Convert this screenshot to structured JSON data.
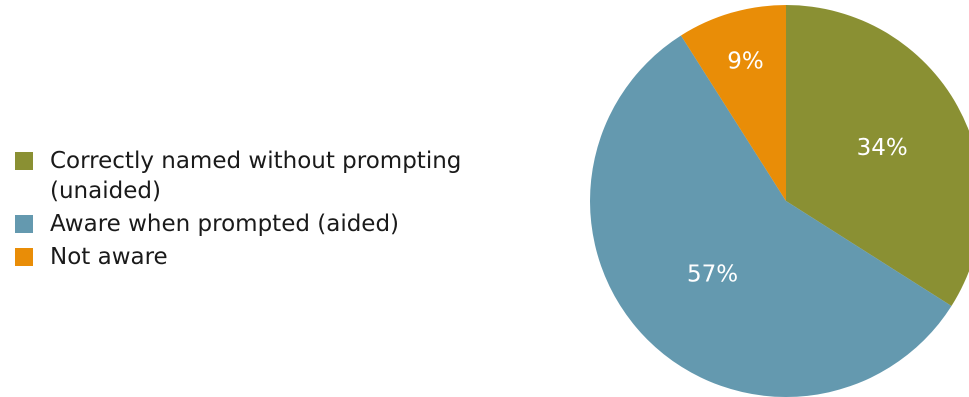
{
  "chart_data": {
    "type": "pie",
    "title": "",
    "legend_position": "left",
    "start_angle_deg": 0,
    "direction": "clockwise",
    "slices": [
      {
        "label": "Correctly named without prompting (unaided)",
        "value": 34,
        "value_label": "34%",
        "color": "#8a9033"
      },
      {
        "label": "Aware when prompted (aided)",
        "value": 57,
        "value_label": "57%",
        "color": "#6499af"
      },
      {
        "label": "Not aware",
        "value": 9,
        "value_label": "9%",
        "color": "#e98d07"
      }
    ]
  }
}
